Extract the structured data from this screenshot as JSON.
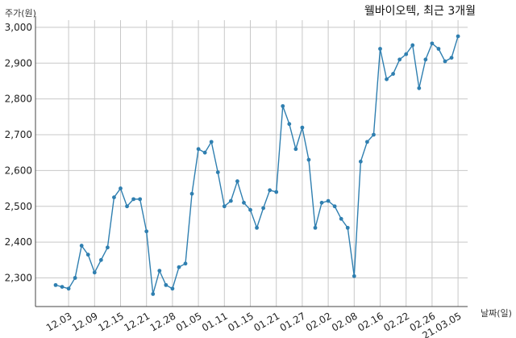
{
  "chart_data": {
    "type": "line",
    "title": "웰바이오텍, 최근 3개월",
    "xlabel": "날짜(일)",
    "ylabel": "주가(원)",
    "ylim": [
      2220,
      3020
    ],
    "yticks": [
      2300,
      2400,
      2500,
      2600,
      2700,
      2800,
      2900,
      3000
    ],
    "ytick_labels": [
      "2,300",
      "2,400",
      "2,500",
      "2,600",
      "2,700",
      "2,800",
      "2,900",
      "3,000"
    ],
    "xtick_labels": [
      "12.03",
      "12.09",
      "12.15",
      "12.21",
      "12.28",
      "01.05",
      "01.11",
      "01.15",
      "01.21",
      "01.27",
      "02.02",
      "02.08",
      "02.16",
      "02.22",
      "02.26",
      "21.03.05"
    ],
    "xtick_index": [
      2,
      6,
      10,
      14,
      18,
      22,
      26,
      30,
      34,
      38,
      42,
      46,
      50,
      54,
      58,
      62
    ],
    "grid": true,
    "line_color": "#2f7fb0",
    "series": [
      {
        "values": [
          2280,
          2275,
          2270,
          2300,
          2390,
          2365,
          2315,
          2350,
          2385,
          2525,
          2550,
          2500,
          2520,
          2520,
          2430,
          2255,
          2320,
          2280,
          2270,
          2330,
          2340,
          2535,
          2660,
          2650,
          2680,
          2595,
          2500,
          2515,
          2570,
          2510,
          2490,
          2440,
          2495,
          2545,
          2540,
          2780,
          2730,
          2660,
          2720,
          2630,
          2440,
          2510,
          2515,
          2500,
          2465,
          2440,
          2305,
          2625,
          2680,
          2700,
          2940,
          2855,
          2870,
          2910,
          2925,
          2950,
          2830,
          2910,
          2955,
          2940,
          2905,
          2915,
          2975
        ]
      }
    ]
  }
}
